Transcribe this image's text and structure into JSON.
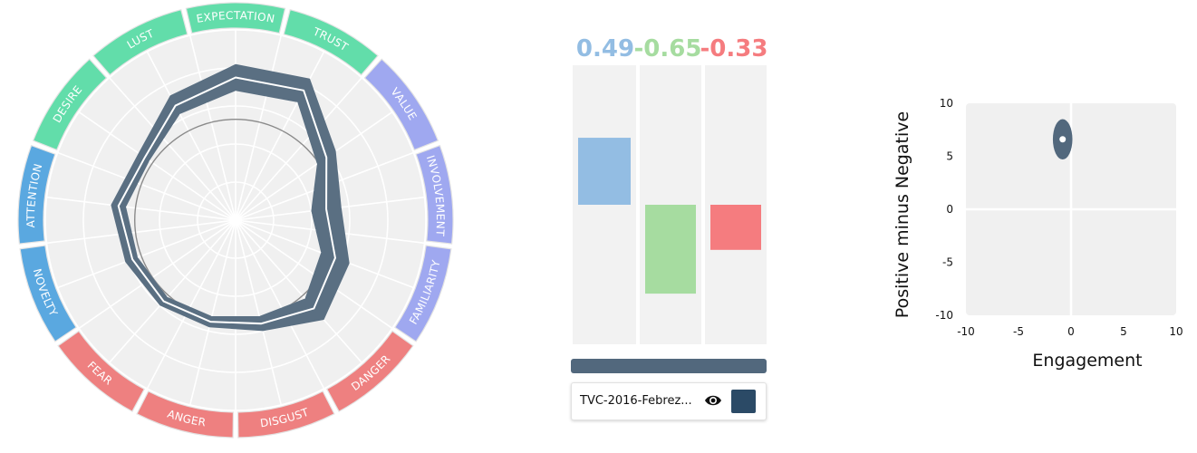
{
  "chart_data": [
    {
      "type": "radar",
      "categories": [
        "EXPECTATION",
        "TRUST",
        "VALUE",
        "INVOLVEMENT",
        "FAMILIARITY",
        "DANGER",
        "DISGUST",
        "ANGER",
        "FEAR",
        "NOVELTY",
        "ATTENTION",
        "DESIRE",
        "LUST"
      ],
      "category_colors": [
        "#62ddaa",
        "#62ddaa",
        "#9fa8f0",
        "#9fa8f0",
        "#9fa8f0",
        "#ee8080",
        "#ee8080",
        "#ee8080",
        "#ee8080",
        "#5aa8e0",
        "#5aa8e0",
        "#62ddaa",
        "#62ddaa"
      ],
      "rlim": [
        0,
        1
      ],
      "series": [
        {
          "lower": [
            0.68,
            0.7,
            0.52,
            0.4,
            0.48,
            0.55,
            0.52,
            0.52,
            0.54,
            0.55,
            0.58,
            0.55,
            0.63
          ],
          "upper": [
            0.82,
            0.84,
            0.64,
            0.56,
            0.64,
            0.7,
            0.6,
            0.58,
            0.6,
            0.62,
            0.66,
            0.62,
            0.74
          ],
          "mid": [
            0.75,
            0.77,
            0.58,
            0.48,
            0.56,
            0.62,
            0.56,
            0.55,
            0.57,
            0.58,
            0.62,
            0.58,
            0.68
          ]
        }
      ],
      "band_color": "#5a6f82"
    },
    {
      "type": "bar",
      "values": [
        0.49,
        -0.65,
        -0.33
      ],
      "labels": [
        "0.49",
        "-0.65",
        "-0.33"
      ],
      "colors": [
        "#93bde3",
        "#a6dca0",
        "#f57c7f"
      ],
      "ylim": [
        -1,
        1
      ]
    },
    {
      "type": "scatter",
      "xlabel": "Engagement",
      "ylabel": "Positive minus Negative",
      "xlim": [
        -10,
        10
      ],
      "ylim": [
        -10,
        10
      ],
      "xticks": [
        "-10",
        "-5",
        "0",
        "5",
        "10"
      ],
      "yticks": [
        "10",
        "5",
        "0",
        "-5",
        "-10"
      ],
      "points": [
        {
          "x": -0.8,
          "y": 6.6,
          "x_err": 0.6,
          "y_err": 1.9
        }
      ],
      "point_color": "#52687d"
    }
  ],
  "legend": {
    "items": [
      {
        "name": "TVC-2016-Febrez...",
        "color": "#2b4a66",
        "icon": "eye-icon"
      }
    ]
  }
}
